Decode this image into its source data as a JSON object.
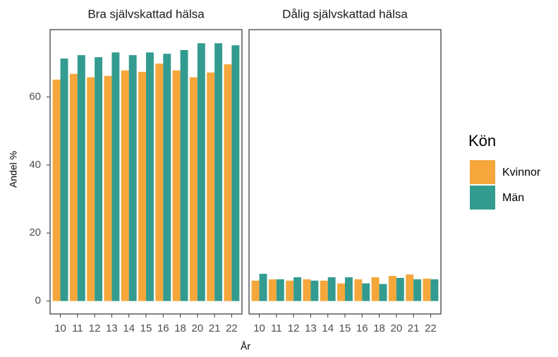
{
  "chart_data": {
    "type": "bar",
    "y_label": "Andel %",
    "x_label": "År",
    "legend_title": "Kön",
    "categories": [
      "10",
      "11",
      "12",
      "13",
      "14",
      "15",
      "16",
      "18",
      "20",
      "21",
      "22"
    ],
    "ylim": [
      -3.8,
      79.8
    ],
    "yticks": [
      0,
      20,
      40,
      60
    ],
    "series_names": [
      "Kvinnor",
      "Män"
    ],
    "colors": [
      "#f5a73b",
      "#339b8f"
    ],
    "facets": [
      {
        "title": "Bra självskattad hälsa",
        "series": [
          {
            "name": "Kvinnor",
            "values": [
              65.1,
              66.8,
              65.8,
              66.2,
              67.8,
              67.4,
              69.8,
              67.8,
              65.8,
              67.2,
              69.6
            ]
          },
          {
            "name": "Män",
            "values": [
              71.3,
              72.3,
              71.7,
              73.1,
              72.3,
              73.1,
              72.7,
              73.8,
              75.8,
              75.8,
              75.2
            ]
          }
        ]
      },
      {
        "title": "Dålig självskattad hälsa",
        "series": [
          {
            "name": "Kvinnor",
            "values": [
              6.0,
              6.4,
              6.0,
              6.4,
              6.0,
              5.2,
              6.4,
              7.0,
              7.4,
              7.8,
              6.6
            ]
          },
          {
            "name": "Män",
            "values": [
              8.0,
              6.4,
              7.0,
              6.0,
              7.0,
              7.0,
              5.2,
              5.0,
              6.8,
              6.4,
              6.4
            ]
          }
        ]
      }
    ]
  }
}
